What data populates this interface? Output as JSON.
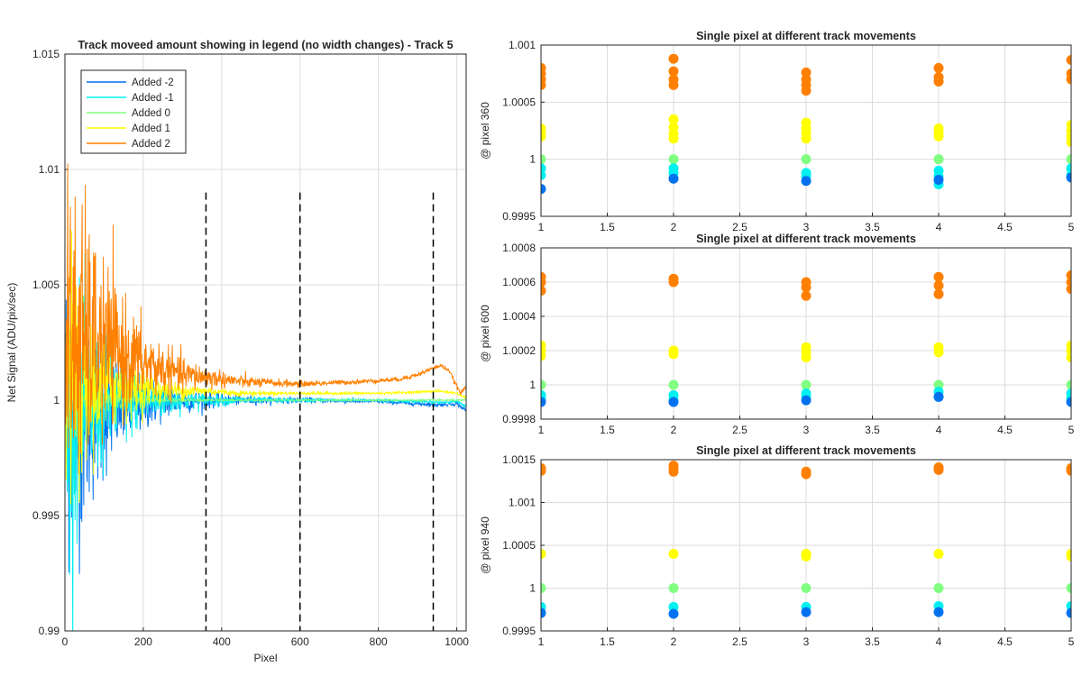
{
  "chart_data": [
    {
      "type": "line",
      "title": "Track moveed amount showing in legend (no width changes) - Track 5",
      "xlabel": "Pixel",
      "ylabel": "Net Signal (ADU/pix/sec)",
      "xlim": [
        0,
        1024
      ],
      "ylim": [
        0.99,
        1.015
      ],
      "xticks": [
        0,
        200,
        400,
        600,
        800,
        1000
      ],
      "yticks": [
        0.99,
        0.995,
        1,
        1.005,
        1.01,
        1.015
      ],
      "ytick_labels": [
        "0.99",
        "0.995",
        "1",
        "1.005",
        "1.01",
        "1.015"
      ],
      "grid": true,
      "legend_position": "top-left",
      "vlines": [
        360,
        600,
        940
      ],
      "series": [
        {
          "name": "Added -2",
          "color": "#0072f0",
          "noise_start": 0.0065,
          "noise_decay": 110,
          "noise_floor": 8e-05,
          "x": [
            0,
            20,
            60,
            120,
            200,
            300,
            360,
            450,
            600,
            800,
            900,
            950,
            1000,
            1024
          ],
          "y": [
            0.9995,
            0.9992,
            0.9994,
            0.9997,
            0.9999,
            0.99995,
            1.0,
            1.0,
            1.0,
            0.99995,
            0.99985,
            0.9998,
            0.99985,
            0.99955
          ]
        },
        {
          "name": "Added -1",
          "color": "#00f0f0",
          "noise_start": 0.006,
          "noise_decay": 110,
          "noise_floor": 6e-05,
          "x": [
            0,
            20,
            60,
            120,
            200,
            300,
            360,
            450,
            600,
            800,
            900,
            950,
            1000,
            1024
          ],
          "y": [
            0.9998,
            0.9996,
            0.9997,
            0.99985,
            0.99995,
            1.0,
            1.0,
            1.0,
            1.0,
            1.0,
            0.99995,
            0.9999,
            0.99995,
            0.9997
          ]
        },
        {
          "name": "Added 0",
          "color": "#80ff80",
          "noise_start": 0.0015,
          "noise_decay": 80,
          "noise_floor": 3e-05,
          "x": [
            0,
            200,
            600,
            1024
          ],
          "y": [
            1.0,
            1.0,
            1.0,
            1.0
          ]
        },
        {
          "name": "Added 1",
          "color": "#ffff00",
          "noise_start": 0.0055,
          "noise_decay": 100,
          "noise_floor": 5e-05,
          "x": [
            0,
            20,
            60,
            120,
            200,
            300,
            360,
            450,
            600,
            800,
            900,
            950,
            1000,
            1024
          ],
          "y": [
            1.0005,
            1.0006,
            1.0006,
            1.0006,
            1.0005,
            1.0004,
            1.0004,
            1.0003,
            1.0003,
            1.0003,
            1.00035,
            1.0004,
            1.0003,
            1.0001
          ]
        },
        {
          "name": "Added 2",
          "color": "#ff8000",
          "noise_start": 0.0075,
          "noise_decay": 120,
          "noise_floor": 8e-05,
          "x": [
            0,
            20,
            60,
            120,
            200,
            300,
            360,
            450,
            600,
            750,
            850,
            900,
            940,
            960,
            980,
            1000,
            1010,
            1024
          ],
          "y": [
            1.002,
            1.0025,
            1.0026,
            1.0022,
            1.0016,
            1.0011,
            1.001,
            1.0008,
            1.0007,
            1.0008,
            1.0009,
            1.0011,
            1.0014,
            1.0015,
            1.0013,
            1.0006,
            1.0003,
            1.0006
          ]
        }
      ]
    },
    {
      "type": "scatter",
      "title": "Single pixel at different track movements",
      "ylabel": "@ pixel 360",
      "xlim": [
        1,
        5
      ],
      "ylim": [
        0.9995,
        1.001
      ],
      "xticks": [
        1,
        1.5,
        2,
        2.5,
        3,
        3.5,
        4,
        4.5,
        5
      ],
      "xtick_labels": [
        "1",
        "1.5",
        "2",
        "2.5",
        "3",
        "3.5",
        "4",
        "4.5",
        "5"
      ],
      "yticks": [
        0.9995,
        1,
        1.0005,
        1.001
      ],
      "ytick_labels": [
        "0.9995",
        "1",
        "1.0005",
        "1.001"
      ],
      "grid": true,
      "series": [
        {
          "color": "#ff8000",
          "points": [
            [
              1,
              1.0008
            ],
            [
              1,
              1.00075
            ],
            [
              1,
              1.0007
            ],
            [
              1,
              1.00065
            ],
            [
              2,
              1.00088
            ],
            [
              2,
              1.00077
            ],
            [
              2,
              1.0007
            ],
            [
              2,
              1.00065
            ],
            [
              3,
              1.00076
            ],
            [
              3,
              1.0007
            ],
            [
              3,
              1.00065
            ],
            [
              3,
              1.0006
            ],
            [
              4,
              1.0008
            ],
            [
              4,
              1.00072
            ],
            [
              4,
              1.00068
            ],
            [
              5,
              1.00087
            ],
            [
              5,
              1.00075
            ],
            [
              5,
              1.0007
            ]
          ]
        },
        {
          "color": "#ffff00",
          "points": [
            [
              1,
              1.00027
            ],
            [
              1,
              1.00023
            ],
            [
              1,
              1.0002
            ],
            [
              2,
              1.00035
            ],
            [
              2,
              1.00028
            ],
            [
              2,
              1.00022
            ],
            [
              2,
              1.00018
            ],
            [
              3,
              1.00032
            ],
            [
              3,
              1.00027
            ],
            [
              3,
              1.00023
            ],
            [
              3,
              1.00018
            ],
            [
              4,
              1.00027
            ],
            [
              4,
              1.00023
            ],
            [
              4,
              1.0002
            ],
            [
              5,
              1.0003
            ],
            [
              5,
              1.00025
            ],
            [
              5,
              1.0002
            ],
            [
              5,
              1.00015
            ]
          ]
        },
        {
          "color": "#80ff80",
          "points": [
            [
              1,
              1.0
            ],
            [
              2,
              1.0
            ],
            [
              3,
              1.0
            ],
            [
              4,
              1.0
            ],
            [
              5,
              1.0
            ]
          ]
        },
        {
          "color": "#00f0f0",
          "points": [
            [
              1,
              0.99992
            ],
            [
              1,
              0.99986
            ],
            [
              2,
              0.99992
            ],
            [
              2,
              0.99988
            ],
            [
              3,
              0.99988
            ],
            [
              3,
              0.99985
            ],
            [
              4,
              0.9999
            ],
            [
              4,
              0.99985
            ],
            [
              4,
              0.99978
            ],
            [
              5,
              0.99992
            ],
            [
              5,
              0.99986
            ]
          ]
        },
        {
          "color": "#0072f0",
          "points": [
            [
              1,
              0.99974
            ],
            [
              2,
              0.99983
            ],
            [
              3,
              0.99981
            ],
            [
              4,
              0.99982
            ],
            [
              5,
              0.99984
            ]
          ]
        }
      ]
    },
    {
      "type": "scatter",
      "title": "Single pixel at different track movements",
      "ylabel": "@ pixel 600",
      "xlim": [
        1,
        5
      ],
      "ylim": [
        0.9998,
        1.0008
      ],
      "xticks": [
        1,
        1.5,
        2,
        2.5,
        3,
        3.5,
        4,
        4.5,
        5
      ],
      "xtick_labels": [
        "1",
        "1.5",
        "2",
        "2.5",
        "3",
        "3.5",
        "4",
        "4.5",
        "5"
      ],
      "yticks": [
        0.9998,
        1,
        1.0002,
        1.0004,
        1.0006,
        1.0008
      ],
      "ytick_labels": [
        "0.9998",
        "1",
        "1.0002",
        "1.0004",
        "1.0006",
        "1.0008"
      ],
      "grid": true,
      "series": [
        {
          "color": "#ff8000",
          "points": [
            [
              1,
              1.00063
            ],
            [
              1,
              1.0006
            ],
            [
              1,
              1.00055
            ],
            [
              2,
              1.00062
            ],
            [
              2,
              1.0006
            ],
            [
              3,
              1.0006
            ],
            [
              3,
              1.00057
            ],
            [
              3,
              1.00052
            ],
            [
              4,
              1.00063
            ],
            [
              4,
              1.00058
            ],
            [
              4,
              1.00053
            ],
            [
              5,
              1.00064
            ],
            [
              5,
              1.0006
            ],
            [
              5,
              1.00056
            ]
          ]
        },
        {
          "color": "#ffff00",
          "points": [
            [
              1,
              1.00023
            ],
            [
              1,
              1.0002
            ],
            [
              1,
              1.00017
            ],
            [
              2,
              1.0002
            ],
            [
              2,
              1.00018
            ],
            [
              3,
              1.00022
            ],
            [
              3,
              1.00019
            ],
            [
              3,
              1.00016
            ],
            [
              4,
              1.00022
            ],
            [
              4,
              1.00019
            ],
            [
              5,
              1.00023
            ],
            [
              5,
              1.0002
            ],
            [
              5,
              1.00016
            ]
          ]
        },
        {
          "color": "#80ff80",
          "points": [
            [
              1,
              1.0
            ],
            [
              2,
              1.0
            ],
            [
              3,
              1.0
            ],
            [
              4,
              1.0
            ],
            [
              5,
              1.0
            ]
          ]
        },
        {
          "color": "#00f0f0",
          "points": [
            [
              1,
              0.99994
            ],
            [
              1,
              0.99992
            ],
            [
              2,
              0.99994
            ],
            [
              2,
              0.99991
            ],
            [
              3,
              0.99995
            ],
            [
              3,
              0.99993
            ],
            [
              4,
              0.99996
            ],
            [
              4,
              0.99993
            ],
            [
              5,
              0.99995
            ],
            [
              5,
              0.99992
            ]
          ]
        },
        {
          "color": "#0072f0",
          "points": [
            [
              1,
              0.9999
            ],
            [
              2,
              0.9999
            ],
            [
              3,
              0.99991
            ],
            [
              4,
              0.99993
            ],
            [
              5,
              0.9999
            ]
          ]
        }
      ]
    },
    {
      "type": "scatter",
      "title": "Single pixel at different track movements",
      "ylabel": "@ pixel 940",
      "xlim": [
        1,
        5
      ],
      "ylim": [
        0.9995,
        1.0015
      ],
      "xticks": [
        1,
        1.5,
        2,
        2.5,
        3,
        3.5,
        4,
        4.5,
        5
      ],
      "xtick_labels": [
        "1",
        "1.5",
        "2",
        "2.5",
        "3",
        "3.5",
        "4",
        "4.5",
        "5"
      ],
      "yticks": [
        0.9995,
        1,
        1.0005,
        1.001,
        1.0015
      ],
      "ytick_labels": [
        "0.9995",
        "1",
        "1.0005",
        "1.001",
        "1.0015"
      ],
      "grid": true,
      "series": [
        {
          "color": "#ff8000",
          "points": [
            [
              1,
              1.0014
            ],
            [
              1,
              1.00137
            ],
            [
              2,
              1.00143
            ],
            [
              2,
              1.0014
            ],
            [
              2,
              1.00136
            ],
            [
              3,
              1.00136
            ],
            [
              3,
              1.00133
            ],
            [
              4,
              1.00141
            ],
            [
              4,
              1.00138
            ],
            [
              5,
              1.0014
            ],
            [
              5,
              1.00137
            ]
          ]
        },
        {
          "color": "#ffff00",
          "points": [
            [
              1,
              1.0004
            ],
            [
              2,
              1.0004
            ],
            [
              3,
              1.0004
            ],
            [
              3,
              1.00037
            ],
            [
              4,
              1.0004
            ],
            [
              5,
              1.0004
            ],
            [
              5,
              1.00037
            ]
          ]
        },
        {
          "color": "#80ff80",
          "points": [
            [
              1,
              1.0
            ],
            [
              2,
              1.0
            ],
            [
              3,
              1.0
            ],
            [
              4,
              1.0
            ],
            [
              5,
              1.0
            ]
          ]
        },
        {
          "color": "#00f0f0",
          "points": [
            [
              1,
              0.99978
            ],
            [
              2,
              0.99978
            ],
            [
              3,
              0.99978
            ],
            [
              4,
              0.99979
            ],
            [
              5,
              0.99979
            ]
          ]
        },
        {
          "color": "#0072f0",
          "points": [
            [
              1,
              0.99971
            ],
            [
              2,
              0.9997
            ],
            [
              3,
              0.99972
            ],
            [
              4,
              0.99972
            ],
            [
              5,
              0.99971
            ]
          ]
        }
      ]
    }
  ]
}
